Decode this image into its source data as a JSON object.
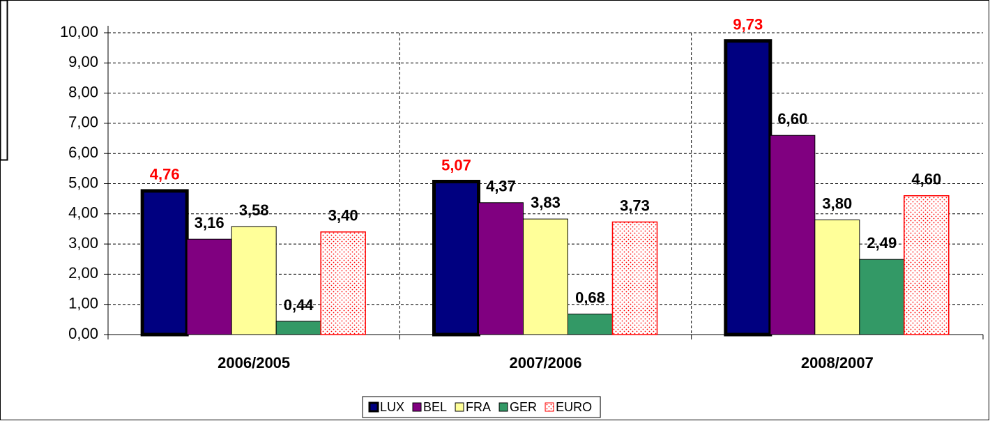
{
  "chart_data": {
    "type": "bar",
    "categories": [
      "2006/2005",
      "2007/2006",
      "2008/2007"
    ],
    "series": [
      {
        "name": "LUX",
        "color": "#000080",
        "edgecolor": "#000000",
        "label_color": "#ff0000",
        "values": [
          4.76,
          5.07,
          9.73
        ],
        "value_labels": [
          "4,76",
          "5,07",
          "9,73"
        ]
      },
      {
        "name": "BEL",
        "color": "#800080",
        "values": [
          3.16,
          4.37,
          6.6
        ],
        "value_labels": [
          "3,16",
          "4,37",
          "6,60"
        ]
      },
      {
        "name": "FRA",
        "color": "#ffff99",
        "values": [
          3.58,
          3.83,
          3.8
        ],
        "value_labels": [
          "3,58",
          "3,83",
          "3,80"
        ]
      },
      {
        "name": "GER",
        "color": "#339966",
        "values": [
          0.44,
          0.68,
          2.49
        ],
        "value_labels": [
          "0,44",
          "0,68",
          "2,49"
        ]
      },
      {
        "name": "EURO",
        "color": "#ff0000",
        "pattern": "dots",
        "values": [
          3.4,
          3.73,
          4.6
        ],
        "value_labels": [
          "3,40",
          "3,73",
          "4,60"
        ]
      }
    ],
    "ylim": [
      0,
      10
    ],
    "yticks": [
      {
        "value": 0,
        "label": "0,00"
      },
      {
        "value": 1,
        "label": "1,00"
      },
      {
        "value": 2,
        "label": "2,00"
      },
      {
        "value": 3,
        "label": "3,00"
      },
      {
        "value": 4,
        "label": "4,00"
      },
      {
        "value": 5,
        "label": "5,00"
      },
      {
        "value": 6,
        "label": "6,00"
      },
      {
        "value": 7,
        "label": "7,00"
      },
      {
        "value": 8,
        "label": "8,00"
      },
      {
        "value": 9,
        "label": "9,00"
      },
      {
        "value": 10,
        "label": "10,00"
      }
    ],
    "grid": true,
    "legend": "bottom"
  }
}
